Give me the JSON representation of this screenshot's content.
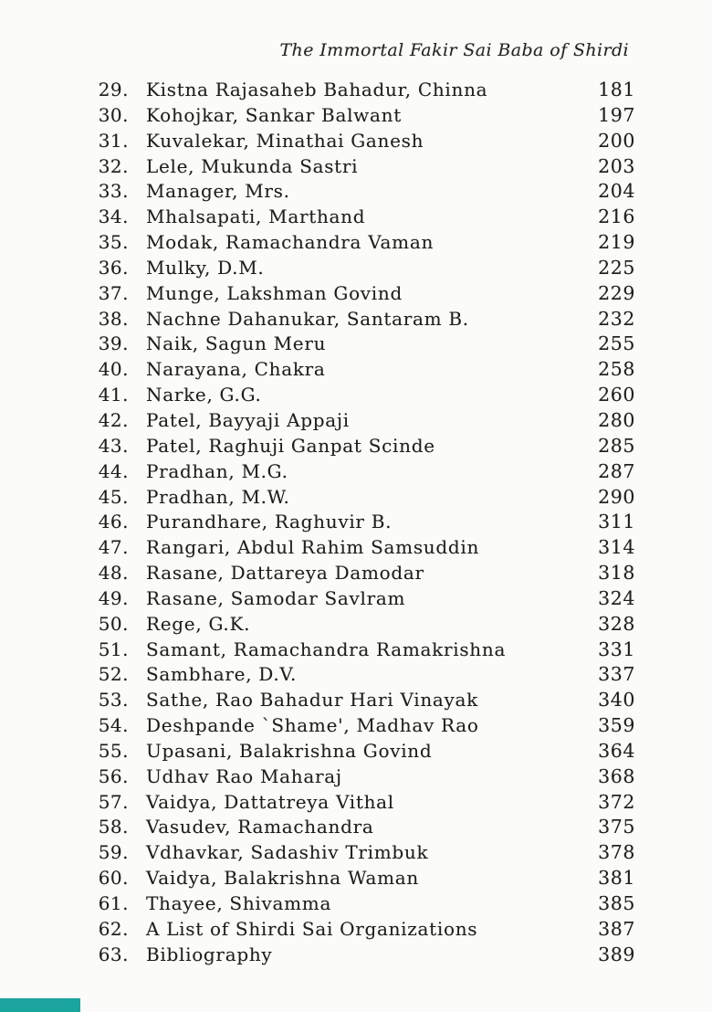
{
  "page": {
    "background_color": "#fbfbf9",
    "text_color": "#201f1d"
  },
  "header": {
    "running_title": "The Immortal Fakir Sai Baba of Shirdi"
  },
  "toc": {
    "entries": [
      {
        "num": "29.",
        "title": "Kistna Rajasaheb Bahadur, Chinna",
        "page": "181"
      },
      {
        "num": "30.",
        "title": "Kohojkar, Sankar Balwant",
        "page": "197"
      },
      {
        "num": "31.",
        "title": "Kuvalekar, Minathai Ganesh",
        "page": "200"
      },
      {
        "num": "32.",
        "title": "Lele, Mukunda Sastri",
        "page": "203"
      },
      {
        "num": "33.",
        "title": "Manager, Mrs.",
        "page": "204"
      },
      {
        "num": "34.",
        "title": "Mhalsapati, Marthand",
        "page": "216"
      },
      {
        "num": "35.",
        "title": "Modak, Ramachandra Vaman",
        "page": "219"
      },
      {
        "num": "36.",
        "title": "Mulky, D.M.",
        "page": "225"
      },
      {
        "num": "37.",
        "title": "Munge, Lakshman Govind",
        "page": "229"
      },
      {
        "num": "38.",
        "title": "Nachne Dahanukar, Santaram B.",
        "page": "232"
      },
      {
        "num": "39.",
        "title": "Naik, Sagun Meru",
        "page": "255"
      },
      {
        "num": "40.",
        "title": "Narayana, Chakra",
        "page": "258"
      },
      {
        "num": "41.",
        "title": "Narke, G.G.",
        "page": "260"
      },
      {
        "num": "42.",
        "title": "Patel, Bayyaji Appaji",
        "page": "280"
      },
      {
        "num": "43.",
        "title": "Patel, Raghuji Ganpat Scinde",
        "page": "285"
      },
      {
        "num": "44.",
        "title": "Pradhan, M.G.",
        "page": "287"
      },
      {
        "num": "45.",
        "title": "Pradhan, M.W.",
        "page": "290"
      },
      {
        "num": "46.",
        "title": "Purandhare, Raghuvir B.",
        "page": "311"
      },
      {
        "num": "47.",
        "title": "Rangari, Abdul Rahim Samsuddin",
        "page": "314"
      },
      {
        "num": "48.",
        "title": "Rasane, Dattareya Damodar",
        "page": "318"
      },
      {
        "num": "49.",
        "title": "Rasane, Samodar Savlram",
        "page": "324"
      },
      {
        "num": "50.",
        "title": "Rege, G.K.",
        "page": "328"
      },
      {
        "num": "51.",
        "title": "Samant, Ramachandra Ramakrishna",
        "page": "331"
      },
      {
        "num": "52.",
        "title": "Sambhare, D.V.",
        "page": "337"
      },
      {
        "num": "53.",
        "title": "Sathe, Rao Bahadur Hari Vinayak",
        "page": "340"
      },
      {
        "num": "54.",
        "title": "Deshpande `Shame', Madhav Rao",
        "page": "359"
      },
      {
        "num": "55.",
        "title": "Upasani, Balakrishna Govind",
        "page": "364"
      },
      {
        "num": "56.",
        "title": "Udhav Rao Maharaj",
        "page": "368"
      },
      {
        "num": "57.",
        "title": "Vaidya, Dattatreya Vithal",
        "page": "372"
      },
      {
        "num": "58.",
        "title": "Vasudev, Ramachandra",
        "page": "375"
      },
      {
        "num": "59.",
        "title": "Vdhavkar, Sadashiv Trimbuk",
        "page": "378"
      },
      {
        "num": "60.",
        "title": "Vaidya, Balakrishna Waman",
        "page": "381"
      },
      {
        "num": "61.",
        "title": "Thayee, Shivamma",
        "page": "385"
      },
      {
        "num": "62.",
        "title": "A List of Shirdi Sai Organizations",
        "page": "387"
      },
      {
        "num": "63.",
        "title": "Bibliography",
        "page": "389"
      }
    ]
  },
  "scan_artifact": {
    "color": "#1aa49d"
  }
}
